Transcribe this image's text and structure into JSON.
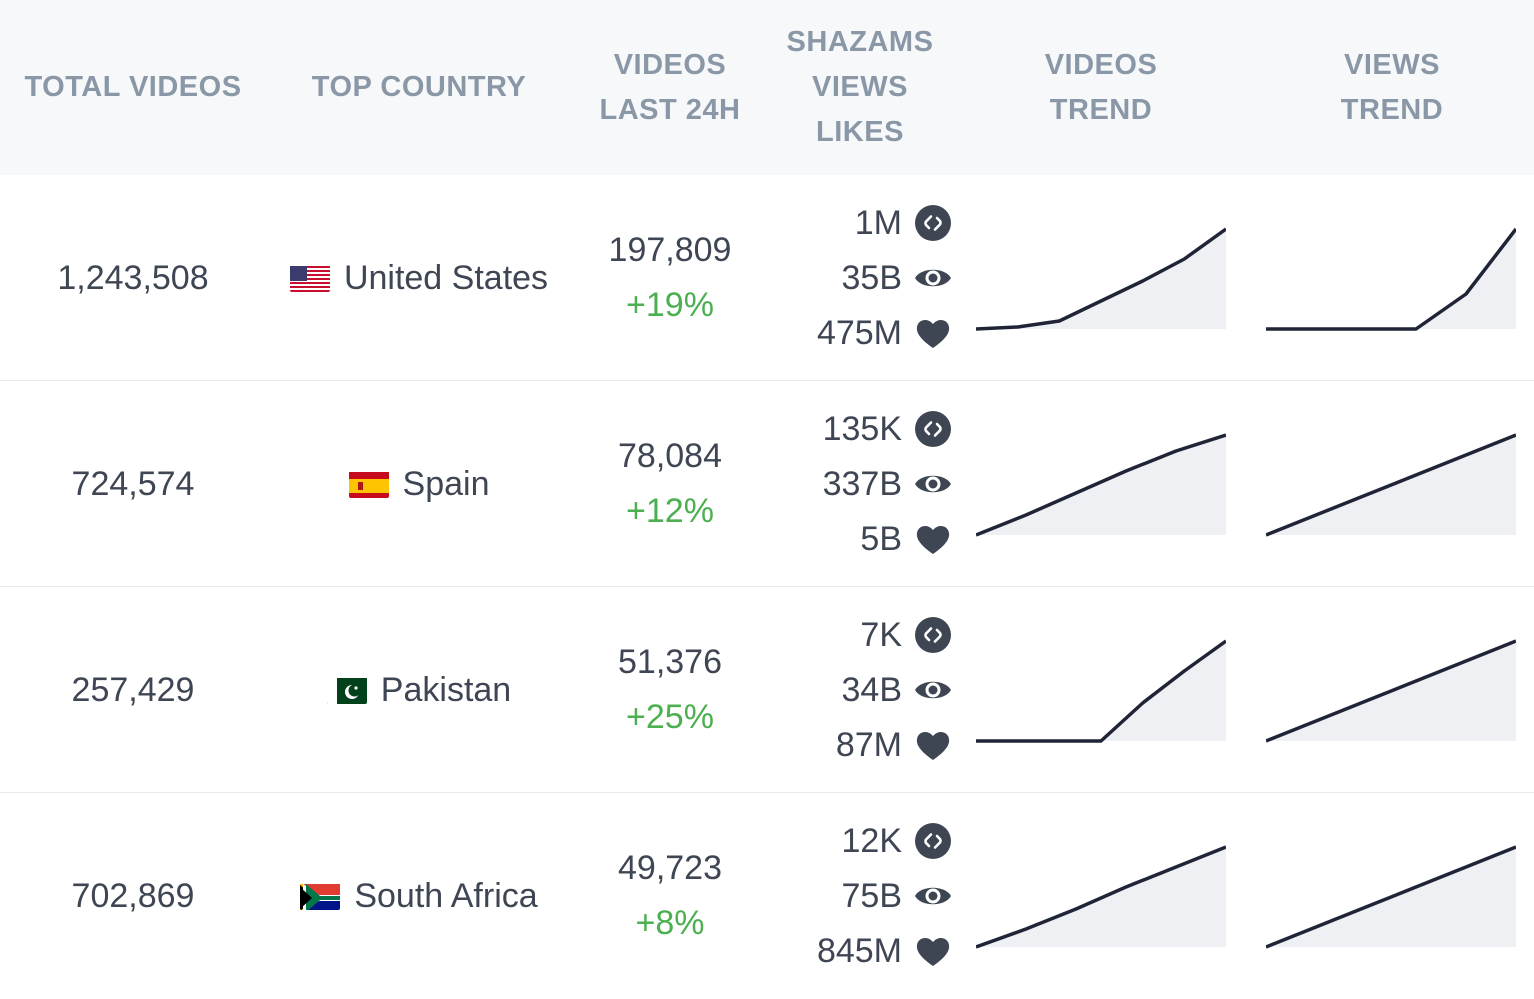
{
  "headers": {
    "total_videos": "TOTAL VIDEOS",
    "top_country": "TOP COUNTRY",
    "videos_last_24h": [
      "VIDEOS",
      "LAST 24H"
    ],
    "metrics": [
      "SHAZAMS",
      "VIEWS",
      "LIKES"
    ],
    "videos_trend": [
      "VIDEOS",
      "TREND"
    ],
    "views_trend": [
      "VIEWS",
      "TREND"
    ]
  },
  "rows": [
    {
      "total_videos": "1,243,508",
      "country": "United States",
      "flag": "us-flag",
      "videos_24h": "197,809",
      "change": "+19%",
      "shazams": "1M",
      "views": "35B",
      "likes": "475M",
      "videos_trend": [
        0,
        0.02,
        0.08,
        0.28,
        0.48,
        0.7,
        1.0
      ],
      "views_trend": [
        0,
        0,
        0,
        0,
        0.35,
        1.0
      ]
    },
    {
      "total_videos": "724,574",
      "country": "Spain",
      "flag": "es-flag",
      "videos_24h": "78,084",
      "change": "+12%",
      "shazams": "135K",
      "views": "337B",
      "likes": "5B",
      "videos_trend": [
        0,
        0.2,
        0.42,
        0.64,
        0.84,
        1.0
      ],
      "views_trend": [
        0,
        0.2,
        0.4,
        0.6,
        0.8,
        1.0
      ]
    },
    {
      "total_videos": "257,429",
      "country": "Pakistan",
      "flag": "pk-flag",
      "videos_24h": "51,376",
      "change": "+25%",
      "shazams": "7K",
      "views": "34B",
      "likes": "87M",
      "videos_trend": [
        0,
        0,
        0,
        0,
        0.38,
        0.7,
        1.0
      ],
      "views_trend": [
        0,
        0.2,
        0.4,
        0.6,
        0.8,
        1.0
      ]
    },
    {
      "total_videos": "702,869",
      "country": "South Africa",
      "flag": "za-flag",
      "videos_24h": "49,723",
      "change": "+8%",
      "shazams": "12K",
      "views": "75B",
      "likes": "845M",
      "videos_trend": [
        0,
        0.18,
        0.38,
        0.6,
        0.8,
        1.0
      ],
      "views_trend": [
        0,
        0.2,
        0.4,
        0.6,
        0.8,
        1.0
      ]
    }
  ],
  "colors": {
    "header_bg": "#f6f8fa",
    "header_text": "#8a97a6",
    "text": "#3f4653",
    "positive": "#4caf50",
    "trend_line": "#1f2537",
    "trend_fill": "#eef0f3",
    "icon": "#3f4653"
  },
  "icons": {
    "shazams": "shazam-icon",
    "views": "eye-icon",
    "likes": "heart-icon"
  }
}
